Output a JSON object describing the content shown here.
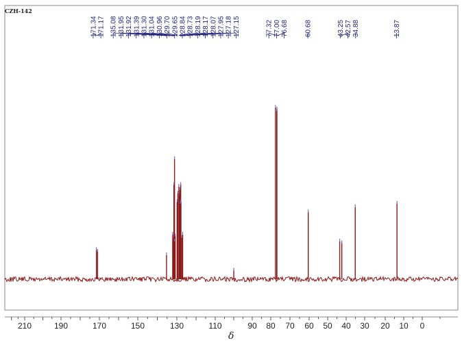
{
  "chart_data": {
    "type": "line",
    "title": "CZH-142",
    "xlabel": "δ",
    "xlim": [
      225,
      -10
    ],
    "x_reversed": true,
    "x_ticks": [
      210,
      190,
      170,
      150,
      130,
      110,
      90,
      80,
      70,
      60,
      50,
      40,
      30,
      20,
      10,
      0
    ],
    "peaks": [
      {
        "ppm": 171.34,
        "height": 0.17
      },
      {
        "ppm": 171.17,
        "height": 0.16
      },
      {
        "ppm": 135.08,
        "height": 0.14
      },
      {
        "ppm": 131.95,
        "height": 0.23
      },
      {
        "ppm": 131.92,
        "height": 0.26
      },
      {
        "ppm": 131.39,
        "height": 0.7
      },
      {
        "ppm": 131.3,
        "height": 0.55
      },
      {
        "ppm": 131.04,
        "height": 0.25
      },
      {
        "ppm": 130.96,
        "height": 0.22
      },
      {
        "ppm": 129.7,
        "height": 0.5
      },
      {
        "ppm": 129.65,
        "height": 0.45
      },
      {
        "ppm": 128.84,
        "height": 0.48
      },
      {
        "ppm": 128.73,
        "height": 0.54
      },
      {
        "ppm": 128.19,
        "height": 0.55
      },
      {
        "ppm": 128.17,
        "height": 0.52
      },
      {
        "ppm": 128.07,
        "height": 0.45
      },
      {
        "ppm": 127.95,
        "height": 0.44
      },
      {
        "ppm": 127.18,
        "height": 0.26
      },
      {
        "ppm": 127.15,
        "height": 0.24
      },
      {
        "ppm": 100.2,
        "height": 0.05
      },
      {
        "ppm": 77.32,
        "height": 1.0
      },
      {
        "ppm": 77.0,
        "height": 0.99
      },
      {
        "ppm": 76.68,
        "height": 0.98
      },
      {
        "ppm": 60.68,
        "height": 0.39
      },
      {
        "ppm": 43.25,
        "height": 0.22
      },
      {
        "ppm": 42.57,
        "height": 0.21
      },
      {
        "ppm": 34.88,
        "height": 0.42
      },
      {
        "ppm": 13.87,
        "height": 0.44
      }
    ],
    "peak_label_groups": [
      [
        "171.34",
        "171.17"
      ],
      [
        "135.08",
        "131.95",
        "131.92",
        "131.39",
        "131.30",
        "131.04",
        "130.96",
        "129.70",
        "129.65",
        "128.84",
        "128.73",
        "128.19",
        "128.17",
        "128.07",
        "127.95",
        "127.18",
        "127.15"
      ],
      [
        "77.32",
        "77.00",
        "76.68"
      ],
      [
        "60.68"
      ],
      [
        "43.25",
        "42.57",
        "34.88"
      ],
      [
        "13.87"
      ]
    ],
    "colors": {
      "spectrum": "#8b1a1a",
      "peak_labels": "#22227a",
      "peak_tip": "#7070c0",
      "frame": "#888888",
      "axis_text": "#222222"
    }
  }
}
